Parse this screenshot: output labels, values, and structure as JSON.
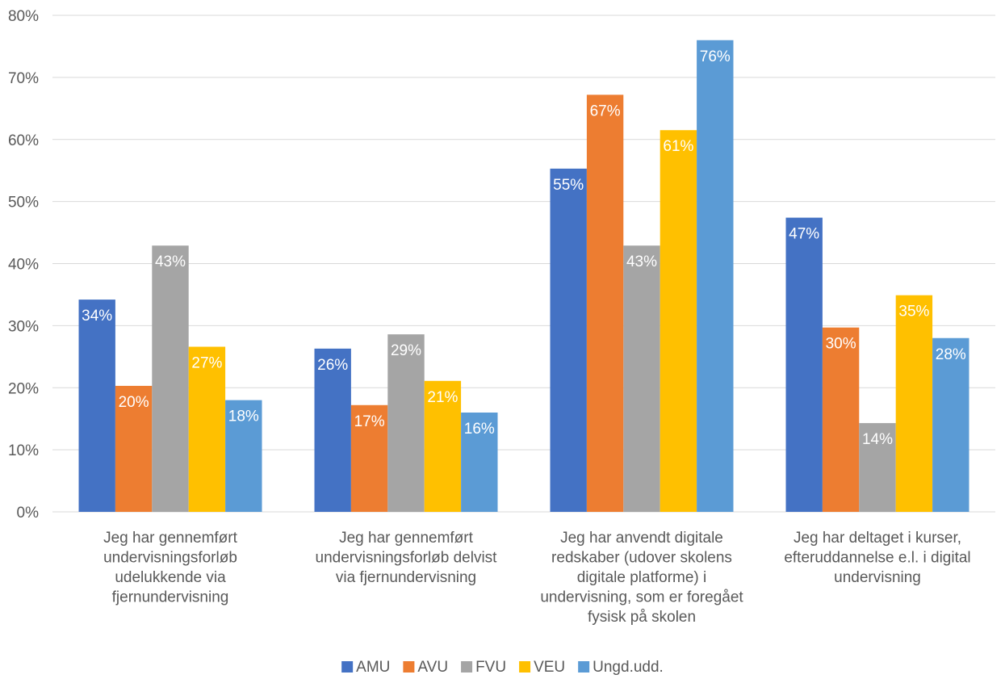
{
  "chart_data": {
    "type": "bar",
    "title": "",
    "xlabel": "",
    "ylabel": "",
    "ylim": [
      0,
      80
    ],
    "y_ticks": [
      "0%",
      "10%",
      "20%",
      "30%",
      "40%",
      "50%",
      "60%",
      "70%",
      "80%"
    ],
    "grid": true,
    "legend_position": "bottom",
    "categories": [
      [
        "Jeg har gennemført",
        "undervisningsforløb",
        "udelukkende via",
        "fjernundervisning"
      ],
      [
        "Jeg har gennemført",
        "undervisningsforløb delvist",
        "via fjernundervisning"
      ],
      [
        "Jeg har anvendt digitale",
        "redskaber (udover skolens",
        "digitale platforme) i",
        "undervisning, som er foregået",
        "fysisk på skolen"
      ],
      [
        "Jeg har deltaget i kurser,",
        "efteruddannelse e.l. i digital",
        "undervisning"
      ]
    ],
    "series": [
      {
        "name": "AMU",
        "color": "#4472c4",
        "values": [
          34.2,
          26.3,
          55.3,
          47.4
        ],
        "labels": [
          "34%",
          "26%",
          "55%",
          "47%"
        ]
      },
      {
        "name": "AVU",
        "color": "#ed7d31",
        "values": [
          20.3,
          17.2,
          67.2,
          29.7
        ],
        "labels": [
          "20%",
          "17%",
          "67%",
          "30%"
        ]
      },
      {
        "name": "FVU",
        "color": "#a5a5a5",
        "values": [
          42.9,
          28.6,
          42.9,
          14.3
        ],
        "labels": [
          "43%",
          "29%",
          "43%",
          "14%"
        ]
      },
      {
        "name": "VEU",
        "color": "#ffc000",
        "values": [
          26.6,
          21.1,
          61.5,
          34.9
        ],
        "labels": [
          "27%",
          "21%",
          "61%",
          "35%"
        ]
      },
      {
        "name": "Ungd.udd.",
        "color": "#5b9bd5",
        "values": [
          18.0,
          16.0,
          76.0,
          28.0
        ],
        "labels": [
          "18%",
          "16%",
          "76%",
          "28%"
        ]
      }
    ]
  }
}
